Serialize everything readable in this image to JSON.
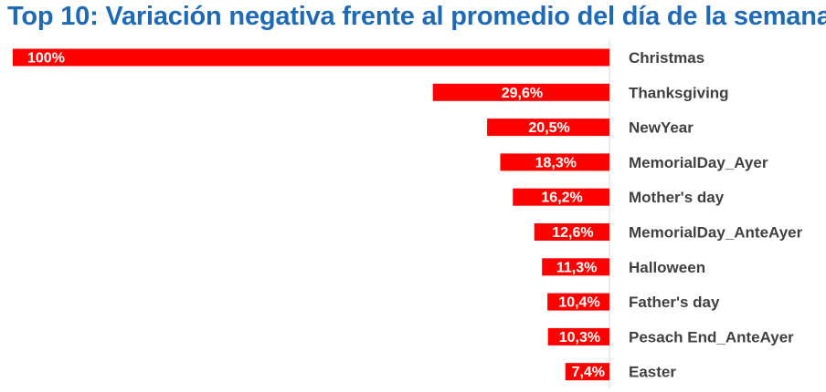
{
  "chart_data": {
    "type": "bar",
    "orientation": "horizontal",
    "title": "Top 10: Variación negativa frente al promedio del día de la semana",
    "categories": [
      "Christmas",
      "Thanksgiving",
      "NewYear",
      "MemorialDay_Ayer",
      "Mother's day",
      "MemorialDay_AnteAyer",
      "Halloween",
      "Father's day",
      "Pesach End_AnteAyer",
      "Easter"
    ],
    "values": [
      100,
      29.6,
      20.5,
      18.3,
      16.2,
      12.6,
      11.3,
      10.4,
      10.3,
      7.4
    ],
    "labels": [
      "100%",
      "29,6%",
      "20,5%",
      "18,3%",
      "16,2%",
      "12,6%",
      "11,3%",
      "10,4%",
      "10,3%",
      "7,4%"
    ],
    "xlim": [
      0,
      100
    ],
    "bar_color": "#ff0000",
    "title_color": "#1f6ab5",
    "grid": false,
    "legend": "none"
  }
}
